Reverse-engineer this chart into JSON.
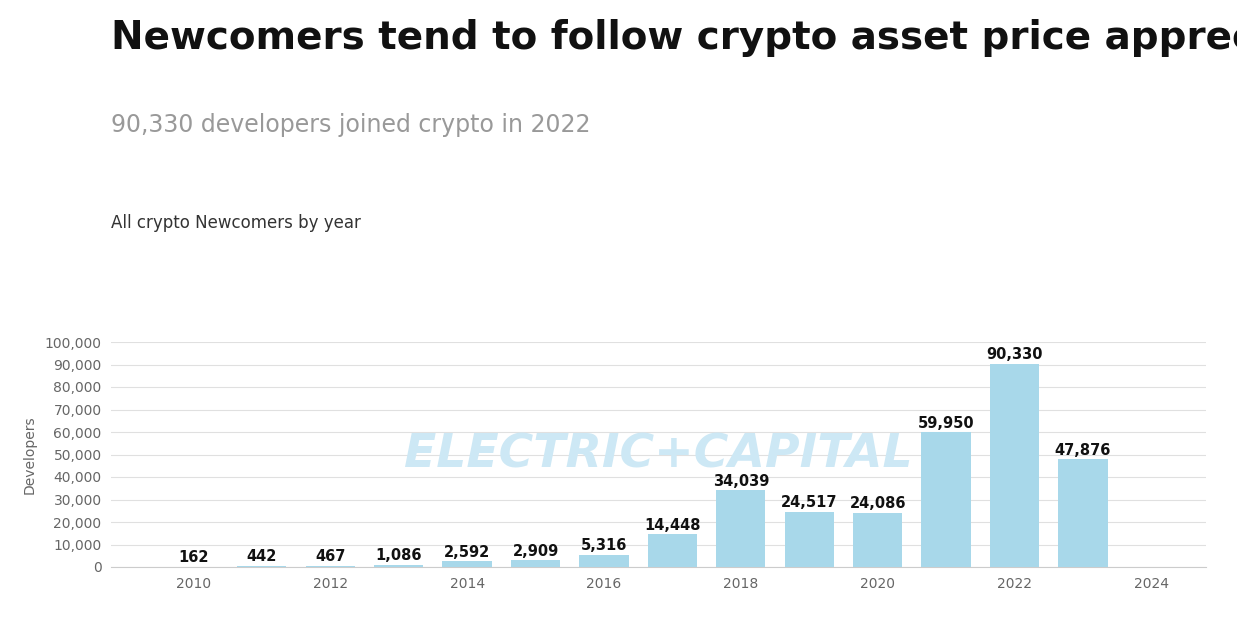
{
  "title": "Newcomers tend to follow crypto asset price appreciation",
  "subtitle": "90,330 developers joined crypto in 2022",
  "section_label": "All crypto Newcomers by year",
  "years": [
    2010,
    2011,
    2012,
    2013,
    2014,
    2015,
    2016,
    2017,
    2018,
    2019,
    2020,
    2021,
    2022,
    2023
  ],
  "values": [
    162,
    442,
    467,
    1086,
    2592,
    2909,
    5316,
    14448,
    34039,
    24517,
    24086,
    59950,
    90330,
    47876
  ],
  "bar_color": "#a8d8ea",
  "ylabel": "Developers",
  "ylim": [
    0,
    100000
  ],
  "yticks": [
    0,
    10000,
    20000,
    30000,
    40000,
    50000,
    60000,
    70000,
    80000,
    90000,
    100000
  ],
  "ytick_labels": [
    "0",
    "10,000",
    "20,000",
    "30,000",
    "40,000",
    "50,000",
    "60,000",
    "70,000",
    "80,000",
    "90,000",
    "100,000"
  ],
  "xticks": [
    2010,
    2012,
    2014,
    2016,
    2018,
    2020,
    2022,
    2024
  ],
  "xtick_labels": [
    "2010",
    "2012",
    "2014",
    "2016",
    "2018",
    "2020",
    "2022",
    "2024"
  ],
  "xlim": [
    2008.8,
    2024.8
  ],
  "watermark": "ELECTRIC+CAPITAL",
  "background_color": "#ffffff",
  "title_fontsize": 28,
  "subtitle_fontsize": 17,
  "section_label_fontsize": 12,
  "bar_label_fontsize": 10.5,
  "ylabel_fontsize": 10,
  "tick_fontsize": 10,
  "title_color": "#111111",
  "subtitle_color": "#999999",
  "section_label_color": "#333333",
  "bar_label_color": "#111111",
  "watermark_color": "#cde8f5",
  "watermark_fontsize": 34,
  "grid_color": "#e0e0e0",
  "spine_color": "#cccccc"
}
